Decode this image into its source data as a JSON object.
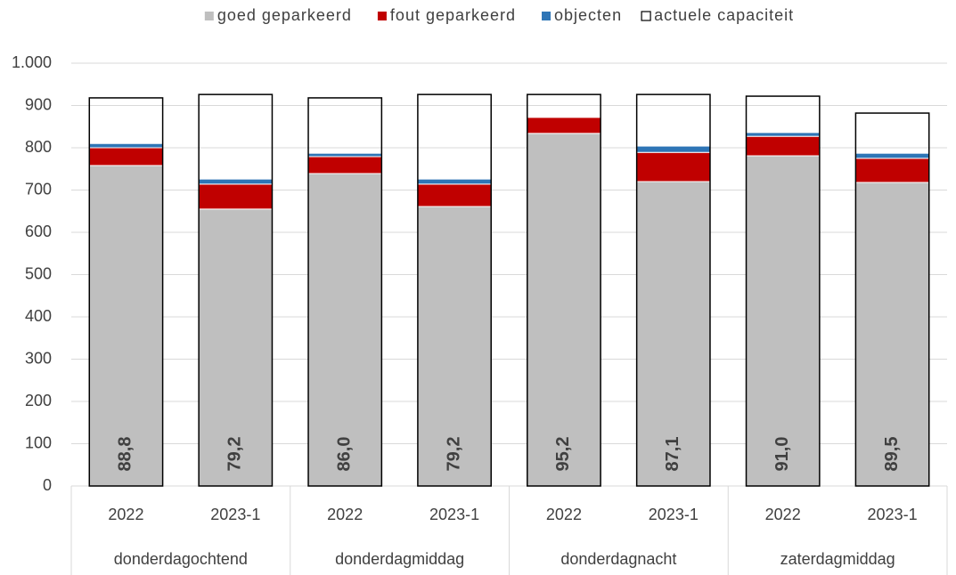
{
  "chart_data": {
    "type": "stacked_bar",
    "categories": [
      "2022",
      "2023-1",
      "2022",
      "2023-1",
      "2022",
      "2023-1",
      "2022",
      "2023-1"
    ],
    "groups": [
      "donderdagochtend",
      "donderdagmiddag",
      "donderdagnacht",
      "zaterdagmiddag"
    ],
    "series": [
      {
        "name": "goed geparkeerd",
        "color": "#bfbfbf",
        "values": [
          758,
          655,
          739,
          661,
          834,
          720,
          781,
          718
        ]
      },
      {
        "name": "fout geparkeerd",
        "color": "#c00000",
        "values": [
          42,
          59,
          40,
          53,
          38,
          69,
          46,
          57
        ]
      },
      {
        "name": "objecten",
        "color": "#2e75b6",
        "values": [
          10,
          12,
          8,
          12,
          2,
          15,
          9,
          12
        ]
      }
    ],
    "capacity": {
      "name": "actuele capaciteit",
      "color": "#000000",
      "values": [
        918,
        926,
        918,
        926,
        926,
        926,
        922,
        882
      ]
    },
    "bar_labels": {
      "values": [
        88.8,
        79.2,
        86.0,
        79.2,
        95.2,
        87.1,
        91.0,
        89.5
      ],
      "value_labels": [
        "88,8",
        "79,2",
        "86,0",
        "79,2",
        "95,2",
        "87,1",
        "91,0",
        "89,5"
      ]
    },
    "ylim": [
      0,
      1000
    ],
    "yticks": [
      0,
      100,
      200,
      300,
      400,
      500,
      600,
      700,
      800,
      900,
      {
        "value": 1000,
        "label": "1.000"
      }
    ],
    "grid": true,
    "legend": "top"
  }
}
